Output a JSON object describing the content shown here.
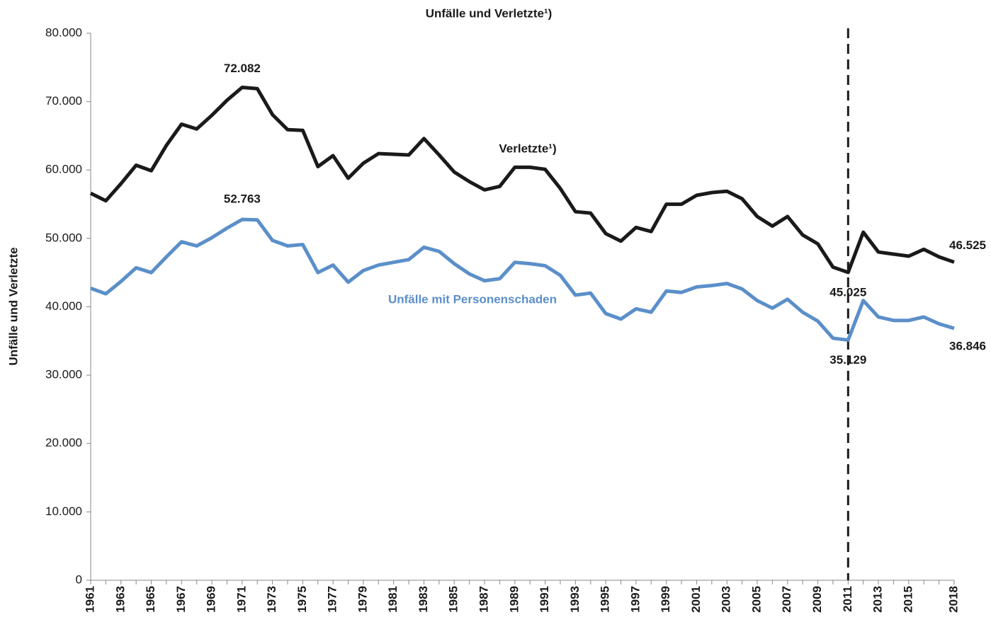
{
  "chart_data": {
    "type": "line",
    "title": "Unfälle und Verletzte¹)",
    "y_label": "Unfälle und Verletzte",
    "categories": [
      "1961",
      null,
      "1963",
      null,
      "1965",
      null,
      "1967",
      null,
      "1969",
      null,
      "1971",
      null,
      "1973",
      null,
      "1975",
      null,
      "1977",
      null,
      "1979",
      null,
      "1981",
      null,
      "1983",
      null,
      "1985",
      null,
      "1987",
      null,
      "1989",
      null,
      "1991",
      null,
      "1993",
      null,
      "1995",
      null,
      "1997",
      null,
      "1999",
      null,
      "2001",
      null,
      "2003",
      null,
      "2005",
      null,
      "2007",
      null,
      "2009",
      null,
      "2011",
      null,
      "2013",
      null,
      "2015",
      null,
      null,
      "2018"
    ],
    "series": [
      {
        "name": "Verletzte¹)",
        "color": "#1a1a1a",
        "values": [
          56600,
          55500,
          58000,
          60700,
          59900,
          63600,
          66700,
          66000,
          68000,
          70200,
          72082,
          71900,
          68100,
          65900,
          65800,
          60500,
          62100,
          58800,
          61000,
          62400,
          62300,
          62200,
          64600,
          62200,
          59700,
          58300,
          57100,
          57600,
          60400,
          60400,
          60100,
          57300,
          53900,
          53700,
          50700,
          49600,
          51600,
          51000,
          55000,
          55000,
          56300,
          56700,
          56900,
          55800,
          53200,
          51800,
          53200,
          50500,
          49200,
          45800,
          45025,
          50900,
          48000,
          47700,
          47400,
          48400,
          47300,
          46525
        ],
        "value_labels": [
          null,
          null,
          null,
          null,
          null,
          null,
          null,
          null,
          null,
          null,
          "72.082",
          null,
          null,
          null,
          null,
          null,
          null,
          null,
          null,
          null,
          null,
          null,
          null,
          null,
          null,
          null,
          null,
          null,
          null,
          null,
          null,
          null,
          null,
          null,
          null,
          null,
          null,
          null,
          null,
          null,
          null,
          null,
          null,
          null,
          null,
          null,
          null,
          null,
          null,
          null,
          "45.025",
          null,
          null,
          null,
          null,
          null,
          null,
          "46.525"
        ]
      },
      {
        "name": "Unfälle mit Personenschaden",
        "color": "#5b8fc9",
        "values": [
          42700,
          41900,
          43700,
          45700,
          45000,
          47300,
          49500,
          48900,
          50100,
          51500,
          52763,
          52700,
          49700,
          48900,
          49100,
          45000,
          46100,
          43600,
          45300,
          46100,
          46500,
          46900,
          48700,
          48100,
          46300,
          44800,
          43800,
          44100,
          46500,
          46300,
          46000,
          44600,
          41700,
          42000,
          39000,
          38200,
          39700,
          39200,
          42300,
          42100,
          42900,
          43100,
          43400,
          42600,
          40900,
          39800,
          41100,
          39200,
          37900,
          35400,
          35129,
          40900,
          38500,
          38000,
          38000,
          38500,
          37500,
          36846
        ],
        "value_labels": [
          null,
          null,
          null,
          null,
          null,
          null,
          null,
          null,
          null,
          null,
          "52.763",
          null,
          null,
          null,
          null,
          null,
          null,
          null,
          null,
          null,
          null,
          null,
          null,
          null,
          null,
          null,
          null,
          null,
          null,
          null,
          null,
          null,
          null,
          null,
          null,
          null,
          null,
          null,
          null,
          null,
          null,
          null,
          null,
          null,
          null,
          null,
          null,
          null,
          null,
          null,
          "35.129",
          null,
          null,
          null,
          null,
          null,
          null,
          "36.846"
        ]
      }
    ],
    "ylim": [
      0,
      80000
    ],
    "yticks": [
      0,
      {
        "value": 10000,
        "label": "10.000"
      },
      {
        "value": 20000,
        "label": "20.000"
      },
      {
        "value": 30000,
        "label": "30.000"
      },
      {
        "value": 40000,
        "label": "40.000"
      },
      {
        "value": 50000,
        "label": "50.000"
      },
      {
        "value": 60000,
        "label": "60.000"
      },
      {
        "value": 70000,
        "label": "70.000"
      },
      {
        "value": 80000,
        "label": "80.000"
      }
    ],
    "vertical_line_at": "2011",
    "grid": false
  }
}
